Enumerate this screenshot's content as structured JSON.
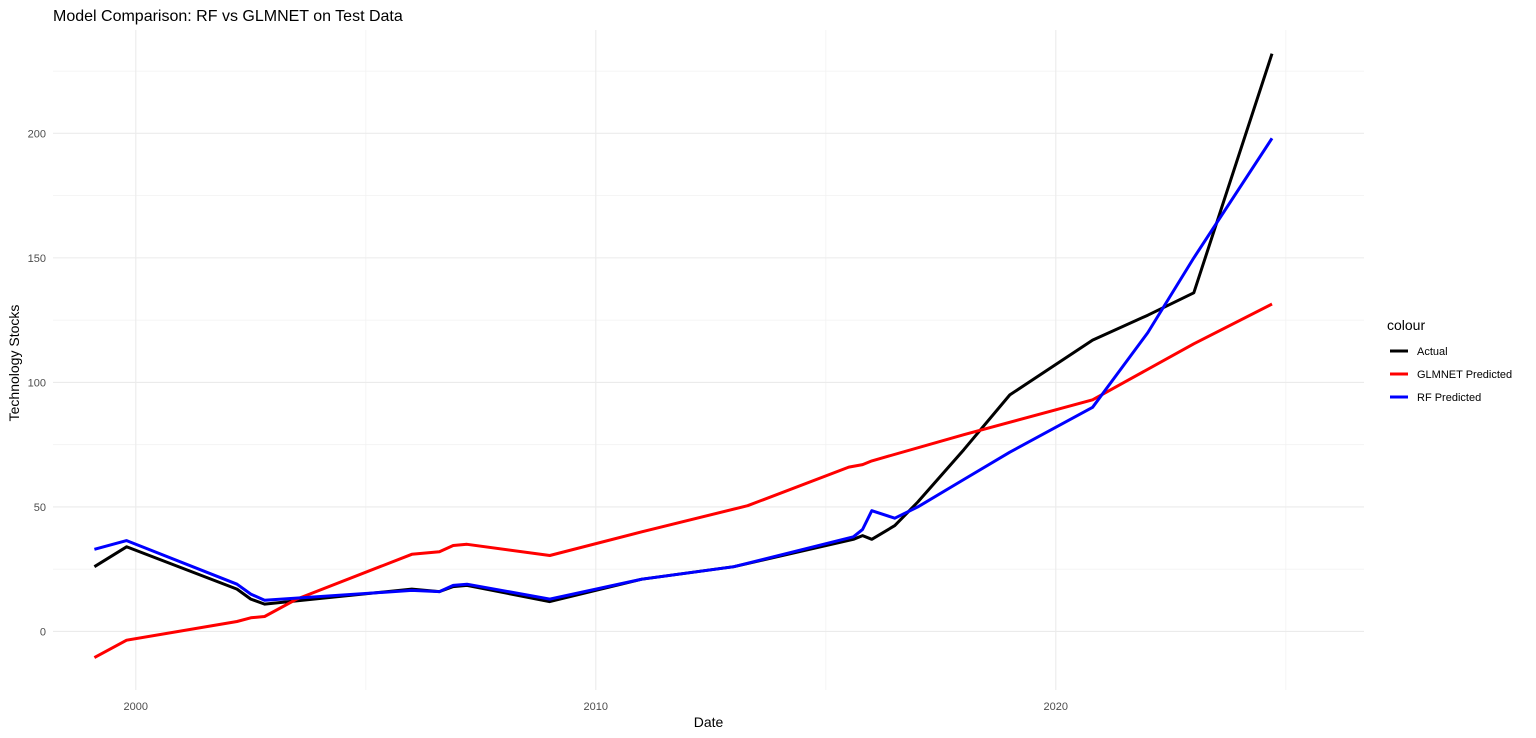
{
  "chart_data": {
    "type": "line",
    "title": "Model Comparison: RF vs GLMNET on Test Data",
    "xlabel": "Date",
    "ylabel": "Technology Stocks",
    "xlim": [
      1998.2,
      2026.7
    ],
    "ylim": [
      -23.5,
      241.5
    ],
    "x_ticks": [
      2000,
      2010,
      2020
    ],
    "y_ticks": [
      0,
      50,
      100,
      150,
      200
    ],
    "grid": true,
    "legend_title": "colour",
    "legend_position": "right",
    "series": [
      {
        "name": "Actual",
        "color": "#000000",
        "points": [
          [
            1999.1,
            26
          ],
          [
            1999.8,
            34
          ],
          [
            2002.2,
            17
          ],
          [
            2002.5,
            13
          ],
          [
            2002.8,
            11
          ],
          [
            2006,
            17
          ],
          [
            2006.6,
            16
          ],
          [
            2006.9,
            18
          ],
          [
            2007.2,
            18.5
          ],
          [
            2009,
            12
          ],
          [
            2011,
            21
          ],
          [
            2013,
            26
          ],
          [
            2015.6,
            37
          ],
          [
            2015.8,
            38.5
          ],
          [
            2016,
            37
          ],
          [
            2016.5,
            42.5
          ],
          [
            2017,
            52
          ],
          [
            2018,
            73
          ],
          [
            2019,
            95
          ],
          [
            2020.8,
            117
          ],
          [
            2022,
            127
          ],
          [
            2023,
            136
          ],
          [
            2024.7,
            232
          ]
        ]
      },
      {
        "name": "GLMNET Predicted",
        "color": "#ff0000",
        "points": [
          [
            1999.1,
            -10.5
          ],
          [
            1999.8,
            -3.5
          ],
          [
            2002.2,
            4
          ],
          [
            2002.5,
            5.5
          ],
          [
            2002.8,
            6
          ],
          [
            2003.5,
            13
          ],
          [
            2006,
            31
          ],
          [
            2006.6,
            32
          ],
          [
            2006.9,
            34.5
          ],
          [
            2007.2,
            35
          ],
          [
            2009,
            30.5
          ],
          [
            2011,
            40
          ],
          [
            2013.3,
            50.5
          ],
          [
            2015.5,
            66
          ],
          [
            2015.8,
            67
          ],
          [
            2016,
            68.5
          ],
          [
            2018,
            79
          ],
          [
            2020,
            89
          ],
          [
            2020.8,
            93
          ],
          [
            2023,
            115.5
          ],
          [
            2024.7,
            131.5
          ]
        ]
      },
      {
        "name": "RF Predicted",
        "color": "#0000ff",
        "points": [
          [
            1999.1,
            33
          ],
          [
            1999.8,
            36.5
          ],
          [
            2002.2,
            19
          ],
          [
            2002.5,
            15
          ],
          [
            2002.8,
            12.5
          ],
          [
            2006,
            16.5
          ],
          [
            2006.6,
            16
          ],
          [
            2006.9,
            18.5
          ],
          [
            2007.2,
            19
          ],
          [
            2009,
            13
          ],
          [
            2011,
            21
          ],
          [
            2013,
            26
          ],
          [
            2015.6,
            38
          ],
          [
            2015.8,
            41
          ],
          [
            2016,
            48.5
          ],
          [
            2016.5,
            45.5
          ],
          [
            2017,
            50
          ],
          [
            2018,
            61
          ],
          [
            2019,
            72
          ],
          [
            2020.8,
            90
          ],
          [
            2022,
            120
          ],
          [
            2023,
            150
          ],
          [
            2024.7,
            198
          ]
        ]
      }
    ]
  }
}
